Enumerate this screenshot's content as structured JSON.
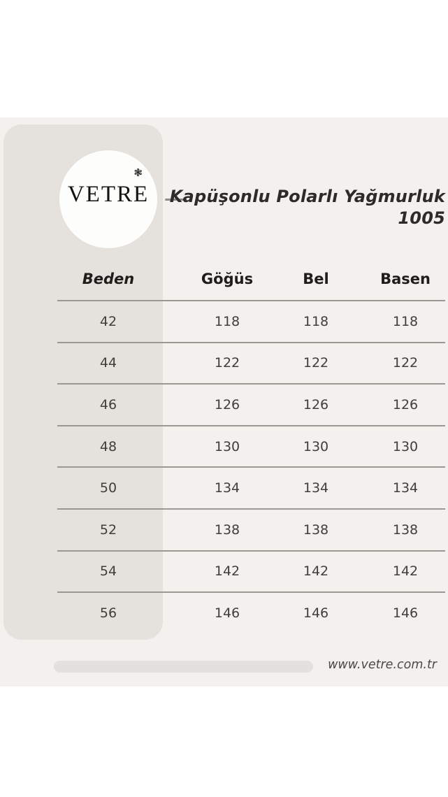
{
  "brand": {
    "logo_text": "VETRE",
    "ornament": "❃"
  },
  "header": {
    "product_name": "Kapüşonlu Polarlı Yağmurluk",
    "product_code": "1005"
  },
  "chart_data": {
    "type": "table",
    "title": "Kapüşonlu Polarlı Yağmurluk 1005",
    "columns": [
      "Beden",
      "Göğüs",
      "Bel",
      "Basen"
    ],
    "rows": [
      [
        "42",
        "118",
        "118",
        "118"
      ],
      [
        "44",
        "122",
        "122",
        "122"
      ],
      [
        "46",
        "126",
        "126",
        "126"
      ],
      [
        "48",
        "130",
        "130",
        "130"
      ],
      [
        "50",
        "134",
        "134",
        "134"
      ],
      [
        "52",
        "138",
        "138",
        "138"
      ],
      [
        "54",
        "142",
        "142",
        "142"
      ],
      [
        "56",
        "146",
        "146",
        "146"
      ]
    ]
  },
  "footer": {
    "website": "www.vetre.com.tr"
  },
  "colors": {
    "page_bg": "#ffffff",
    "panel_bg": "#f2f1ee",
    "sidebar_bg": "#e5e1dc",
    "line": "#9b9893",
    "title_text": "#2d2a27"
  }
}
